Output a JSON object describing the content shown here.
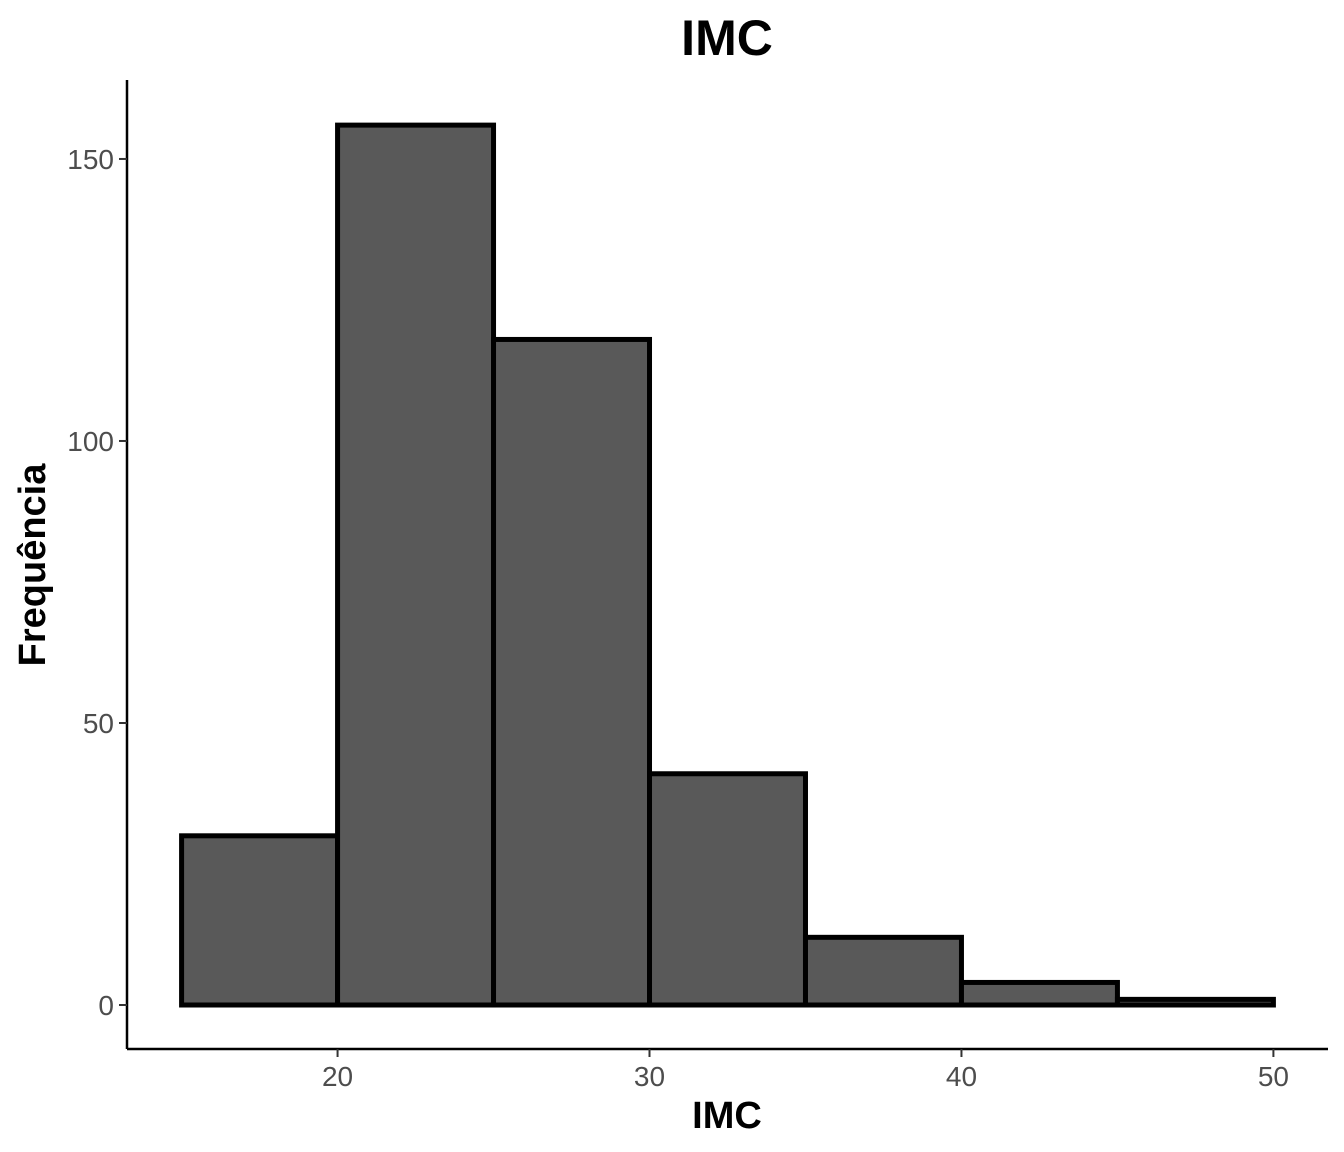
{
  "chart_data": {
    "type": "bar",
    "title": "IMC",
    "xlabel": "IMC",
    "ylabel": "Frequência",
    "xlim": [
      13.25,
      51.75
    ],
    "ylim": [
      -7.8,
      164
    ],
    "x_ticks": [
      20,
      30,
      40,
      50
    ],
    "y_ticks": [
      0,
      50,
      100,
      150
    ],
    "bins": [
      {
        "start": 15,
        "end": 20,
        "count": 30
      },
      {
        "start": 20,
        "end": 25,
        "count": 156
      },
      {
        "start": 25,
        "end": 30,
        "count": 118
      },
      {
        "start": 30,
        "end": 35,
        "count": 41
      },
      {
        "start": 35,
        "end": 40,
        "count": 12
      },
      {
        "start": 40,
        "end": 45,
        "count": 4
      },
      {
        "start": 45,
        "end": 50,
        "count": 1
      }
    ],
    "grid": false,
    "legend": "none",
    "colors": {
      "fill": "#595959",
      "outline": "#000000",
      "axis": "#000000",
      "tick_text": "#4d4d4d"
    }
  }
}
